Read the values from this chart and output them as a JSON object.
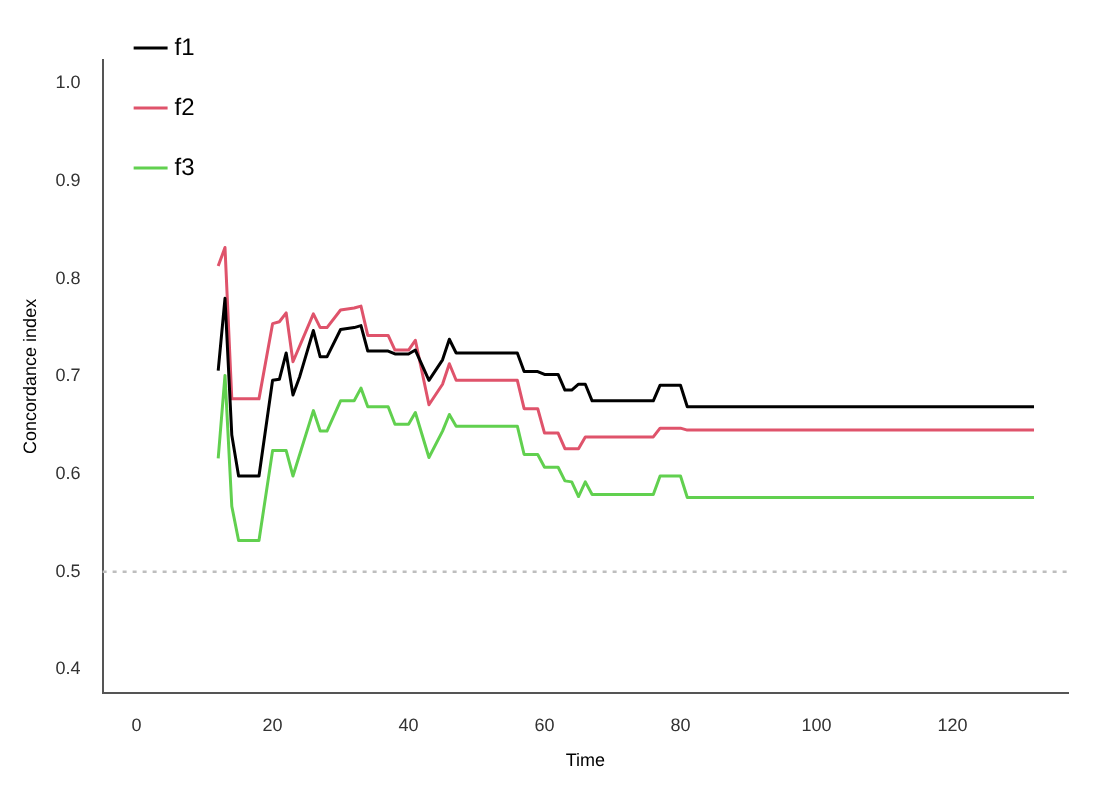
{
  "chart_data": {
    "type": "line",
    "xlabel": "Time",
    "ylabel": "Concordance index",
    "xlim": [
      -5,
      137
    ],
    "xticks": [
      0,
      20,
      40,
      60,
      80,
      100,
      120
    ],
    "ylim": [
      0.376,
      1.024
    ],
    "yticks": [
      0.4,
      0.5,
      0.6,
      0.7,
      0.8,
      0.9,
      {
        "value": 1,
        "label": "1.0"
      }
    ],
    "grid": false,
    "legend": "top left",
    "marker": "none",
    "line_style": "solid",
    "ref_lines": [
      {
        "axis": "y",
        "value": 0.5,
        "color": "#bebebe",
        "line_style": "dotted"
      }
    ],
    "series": [
      {
        "name": "f1",
        "color": "#000000",
        "x": [
          12,
          13,
          14,
          15,
          18,
          20,
          21,
          22,
          23,
          24,
          26,
          27,
          28,
          30,
          32,
          33,
          34,
          37,
          38,
          40,
          41,
          43,
          45,
          46,
          47,
          56,
          57,
          59,
          60,
          62,
          63,
          64,
          65,
          66,
          67,
          76,
          77,
          80,
          81,
          132
        ],
        "values": [
          0.706,
          0.78,
          0.64,
          0.598,
          0.598,
          0.696,
          0.697,
          0.724,
          0.681,
          0.7,
          0.747,
          0.72,
          0.72,
          0.748,
          0.75,
          0.752,
          0.726,
          0.726,
          0.723,
          0.723,
          0.727,
          0.696,
          0.717,
          0.738,
          0.724,
          0.724,
          0.705,
          0.705,
          0.702,
          0.702,
          0.686,
          0.686,
          0.692,
          0.692,
          0.675,
          0.675,
          0.691,
          0.691,
          0.669,
          0.669
        ]
      },
      {
        "name": "f2",
        "color": "#df536b",
        "x": [
          12,
          13,
          14,
          18,
          20,
          21,
          22,
          23,
          26,
          27,
          28,
          30,
          32,
          33,
          34,
          37,
          38,
          40,
          41,
          43,
          45,
          46,
          47,
          56,
          57,
          59,
          60,
          62,
          63,
          65,
          66,
          76,
          77,
          80,
          81,
          132
        ],
        "values": [
          0.813,
          0.832,
          0.677,
          0.677,
          0.754,
          0.756,
          0.765,
          0.715,
          0.764,
          0.75,
          0.75,
          0.768,
          0.77,
          0.772,
          0.742,
          0.742,
          0.727,
          0.727,
          0.737,
          0.671,
          0.692,
          0.713,
          0.696,
          0.696,
          0.667,
          0.667,
          0.642,
          0.642,
          0.626,
          0.626,
          0.638,
          0.638,
          0.647,
          0.647,
          0.645,
          0.645
        ]
      },
      {
        "name": "f3",
        "color": "#61d04f",
        "x": [
          12,
          13,
          14,
          15,
          18,
          20,
          22,
          23,
          26,
          27,
          28,
          30,
          32,
          33,
          34,
          37,
          38,
          40,
          41,
          43,
          45,
          46,
          47,
          56,
          57,
          59,
          60,
          62,
          63,
          64,
          65,
          66,
          67,
          76,
          77,
          80,
          81,
          132
        ],
        "values": [
          0.616,
          0.701,
          0.567,
          0.532,
          0.532,
          0.624,
          0.624,
          0.598,
          0.665,
          0.644,
          0.644,
          0.675,
          0.675,
          0.688,
          0.669,
          0.669,
          0.651,
          0.651,
          0.663,
          0.617,
          0.644,
          0.661,
          0.649,
          0.649,
          0.62,
          0.62,
          0.607,
          0.607,
          0.593,
          0.592,
          0.577,
          0.592,
          0.579,
          0.579,
          0.598,
          0.598,
          0.576,
          0.576
        ]
      }
    ]
  }
}
